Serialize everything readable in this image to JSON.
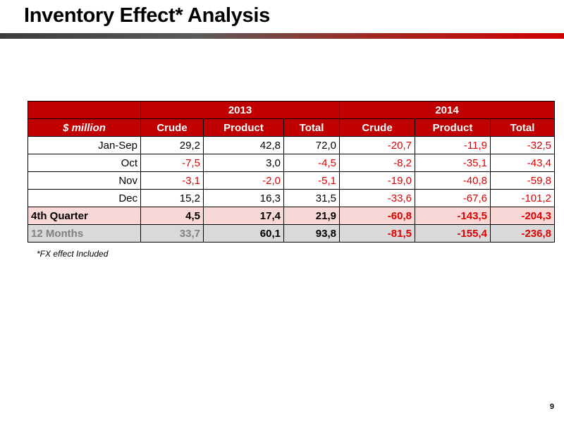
{
  "title": "Inventory Effect* Analysis",
  "footnote": "*FX effect Included",
  "page_number": "9",
  "colors": {
    "header_bg": "#c00000",
    "negative": "#e00000",
    "q4_bg": "#f8d7d7",
    "ytd_bg": "#d9d9d9"
  },
  "table": {
    "unit_label": "$ million",
    "years": [
      "2013",
      "2014"
    ],
    "columns": [
      "Crude",
      "Product",
      "Total",
      "Crude",
      "Product",
      "Total"
    ],
    "rows": [
      {
        "label": "Jan-Sep",
        "values": [
          "29,2",
          "42,8",
          "72,0",
          "-20,7",
          "-11,9",
          "-32,5"
        ]
      },
      {
        "label": "Oct",
        "values": [
          "-7,5",
          "3,0",
          "-4,5",
          "-8,2",
          "-35,1",
          "-43,4"
        ]
      },
      {
        "label": "Nov",
        "values": [
          "-3,1",
          "-2,0",
          "-5,1",
          "-19,0",
          "-40,8",
          "-59,8"
        ]
      },
      {
        "label": "Dec",
        "values": [
          "15,2",
          "16,3",
          "31,5",
          "-33,6",
          "-67,6",
          "-101,2"
        ]
      }
    ],
    "q4": {
      "label": "4th Quarter",
      "values": [
        "4,5",
        "17,4",
        "21,9",
        "-60,8",
        "-143,5",
        "-204,3"
      ]
    },
    "ytd": {
      "label": "12 Months",
      "values": [
        "33,7",
        "60,1",
        "93,8",
        "-81,5",
        "-155,4",
        "-236,8"
      ]
    }
  }
}
